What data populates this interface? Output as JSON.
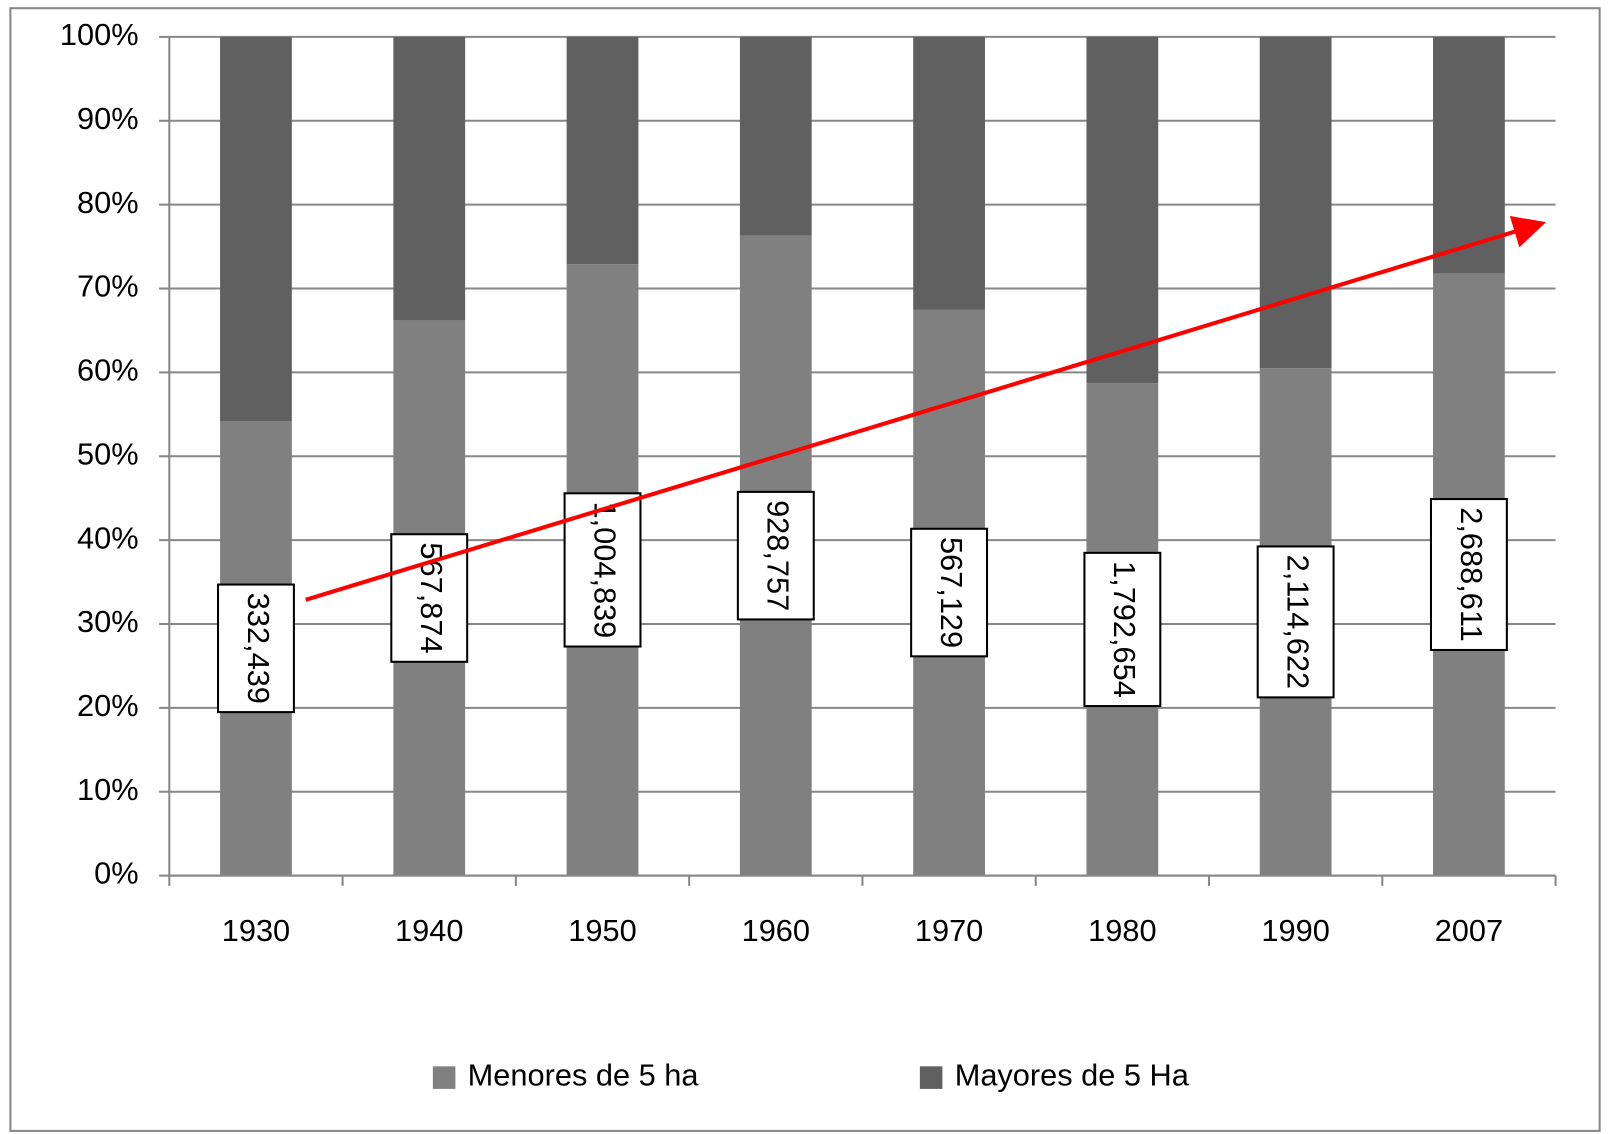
{
  "chart_data": {
    "type": "stacked_bar_100",
    "categories": [
      "1930",
      "1940",
      "1950",
      "1960",
      "1970",
      "1980",
      "1990",
      "2007"
    ],
    "series": [
      {
        "name": "Menores de 5 ha",
        "color": "#808080",
        "values": [
          54.2,
          66.2,
          72.9,
          76.3,
          67.5,
          58.7,
          60.5,
          71.8
        ]
      },
      {
        "name": "Mayores de 5 Ha",
        "color": "#606060",
        "values": [
          45.8,
          33.8,
          27.1,
          23.7,
          32.5,
          41.3,
          39.5,
          28.2
        ]
      }
    ],
    "bar_labels": [
      "332,439",
      "567,874",
      "1,004,839",
      "928,757",
      "567,129",
      "1,792,654",
      "2,114,622",
      "2,688,611"
    ],
    "ylim": [
      0,
      100
    ],
    "yticks": [
      {
        "value": 0,
        "label": "0%"
      },
      {
        "value": 10,
        "label": "10%"
      },
      {
        "value": 20,
        "label": "20%"
      },
      {
        "value": 30,
        "label": "30%"
      },
      {
        "value": 40,
        "label": "40%"
      },
      {
        "value": 50,
        "label": "50%"
      },
      {
        "value": 60,
        "label": "60%"
      },
      {
        "value": 70,
        "label": "70%"
      },
      {
        "value": 80,
        "label": "80%"
      },
      {
        "value": 90,
        "label": "90%"
      },
      {
        "value": 100,
        "label": "100%"
      }
    ],
    "grid": true,
    "legend": "bottom"
  }
}
